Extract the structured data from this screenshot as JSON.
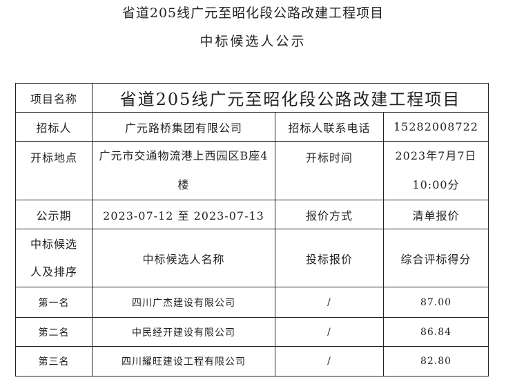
{
  "title": {
    "line1": "省道205线广元至昭化段公路改建工程项目",
    "line2": "中标候选人公示"
  },
  "table": {
    "project_name_label": "项目名称",
    "project_name": "省道205线广元至昭化段公路改建工程项目",
    "tenderer_label": "招标人",
    "tenderer": "广元路桥集团有限公司",
    "contact_label": "招标人联系电话",
    "contact": "15282008722",
    "opening_place_label": "开标地点",
    "opening_place": "广元市交通物流港上西园区B座4楼",
    "opening_time_label": "开标时间",
    "opening_time": "2023年7月7日10:00分",
    "notice_period_label": "公示期",
    "notice_period": "2023-07-12 至 2023-07-13",
    "quote_method_label": "报价方式",
    "quote_method": "清单报价",
    "headers": [
      "中标候选人及排序",
      "中标候选人名称",
      "投标报价",
      "综合评标得分"
    ],
    "rows": [
      {
        "rank": "第一名",
        "name": "四川广杰建设有限公司",
        "bid": "/",
        "score": "87.00"
      },
      {
        "rank": "第二名",
        "name": "中民经开建设有限公司",
        "bid": "/",
        "score": "86.84"
      },
      {
        "rank": "第三名",
        "name": "四川耀旺建设工程有限公司",
        "bid": "/",
        "score": "82.80"
      }
    ]
  }
}
